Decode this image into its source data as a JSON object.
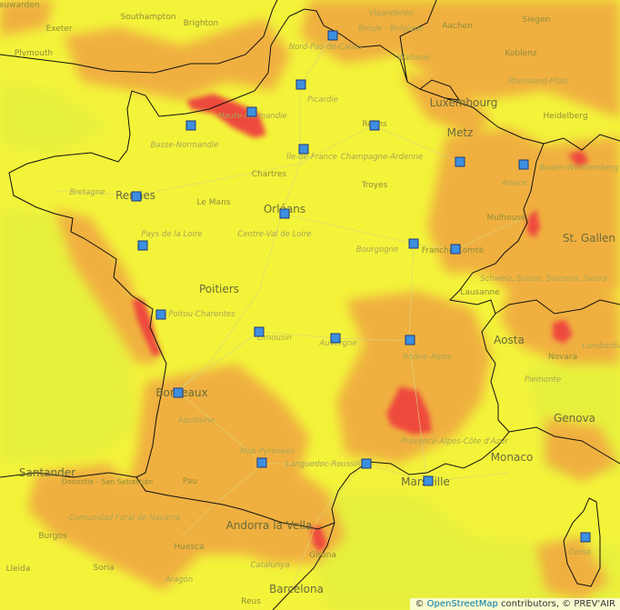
{
  "colors": {
    "low": "#ecf23a",
    "moderate": "#f3f33a",
    "high": "#f0b040",
    "very_high": "#ee4a3e",
    "station": "#3d8fe0"
  },
  "labels": {
    "cities_large": [
      {
        "text": "Metz",
        "name": "label-metz"
      },
      {
        "text": "Rennes",
        "name": "label-rennes"
      },
      {
        "text": "Orléans",
        "name": "label-orleans"
      },
      {
        "text": "Poitiers",
        "name": "label-poitiers"
      },
      {
        "text": "Bordeaux",
        "name": "label-bordeaux"
      },
      {
        "text": "Marseille",
        "name": "label-marseille"
      },
      {
        "text": "Luxembourg",
        "name": "label-luxembourg"
      },
      {
        "text": "St. Gallen",
        "name": "label-st-gallen"
      },
      {
        "text": "Aosta",
        "name": "label-aosta"
      },
      {
        "text": "Genova",
        "name": "label-genova"
      },
      {
        "text": "Monaco",
        "name": "label-monaco"
      },
      {
        "text": "Santander",
        "name": "label-santander"
      },
      {
        "text": "Andorra la Vella",
        "name": "label-andorra"
      },
      {
        "text": "Barcelona",
        "name": "label-barcelona"
      }
    ],
    "cities_small": [
      {
        "text": "Southampton",
        "name": "label-southampton"
      },
      {
        "text": "Brighton",
        "name": "label-brighton"
      },
      {
        "text": "Exeter",
        "name": "label-exeter"
      },
      {
        "text": "Plymouth",
        "name": "label-plymouth"
      },
      {
        "text": "Aachen",
        "name": "label-aachen"
      },
      {
        "text": "Siegen",
        "name": "label-siegen"
      },
      {
        "text": "Koblenz",
        "name": "label-koblenz"
      },
      {
        "text": "Heidelberg",
        "name": "label-heidelberg"
      },
      {
        "text": "Reims",
        "name": "label-reims"
      },
      {
        "text": "Chartres",
        "name": "label-chartres"
      },
      {
        "text": "Troyes",
        "name": "label-troyes"
      },
      {
        "text": "Le Mans",
        "name": "label-le-mans"
      },
      {
        "text": "Mulhouse",
        "name": "label-mulhouse"
      },
      {
        "text": "Lausanne",
        "name": "label-lausanne"
      },
      {
        "text": "Novara",
        "name": "label-novara"
      },
      {
        "text": "Pau",
        "name": "label-pau"
      },
      {
        "text": "Huesca",
        "name": "label-huesca"
      },
      {
        "text": "Burgos",
        "name": "label-burgos"
      },
      {
        "text": "Soria",
        "name": "label-soria"
      },
      {
        "text": "Girona",
        "name": "label-girona"
      },
      {
        "text": "Reus",
        "name": "label-reus"
      },
      {
        "text": "Donostia - San Sebastián",
        "name": "label-donostia"
      },
      {
        "text": "Franche-Comté",
        "name": "label-franche-comte"
      },
      {
        "text": "Leeuwarden",
        "name": "label-leeuwarden"
      },
      {
        "text": "Lleida",
        "name": "label-lleida"
      }
    ],
    "regions": [
      {
        "text": "Vlaanderen",
        "name": "label-vlaanderen"
      },
      {
        "text": "Belgie - Belgique",
        "name": "label-belgique"
      },
      {
        "text": "Wallonie",
        "name": "label-wallonie"
      },
      {
        "text": "Nord-Pas-de-Calais",
        "name": "label-nord-pas-de-calais"
      },
      {
        "text": "Picardie",
        "name": "label-picardie"
      },
      {
        "text": "Haute-Normandie",
        "name": "label-haute-normandie"
      },
      {
        "text": "Basse-Normandie",
        "name": "label-basse-normandie"
      },
      {
        "text": "Île-de-France",
        "name": "label-ile-de-france"
      },
      {
        "text": "Champagne-Ardenne",
        "name": "label-champagne-ardenne"
      },
      {
        "text": "Alsace",
        "name": "label-alsace"
      },
      {
        "text": "Bretagne",
        "name": "label-bretagne"
      },
      {
        "text": "Pays de la Loire",
        "name": "label-pays-de-la-loire"
      },
      {
        "text": "Centre-Val de Loire",
        "name": "label-centre-val-de-loire"
      },
      {
        "text": "Bourgogne",
        "name": "label-bourgogne"
      },
      {
        "text": "Poitou-Charentes",
        "name": "label-poitou-charentes"
      },
      {
        "text": "Limousin",
        "name": "label-limousin"
      },
      {
        "text": "Auvergne",
        "name": "label-auvergne"
      },
      {
        "text": "Rhône-Alpes",
        "name": "label-rhone-alpes"
      },
      {
        "text": "Aquitaine",
        "name": "label-aquitaine"
      },
      {
        "text": "Midi-Pyrénées",
        "name": "label-midi-pyrenees"
      },
      {
        "text": "Languedoc-Roussillon",
        "name": "label-languedoc-roussillon"
      },
      {
        "text": "Provence-Alpes-Côte d'Azur",
        "name": "label-paca"
      },
      {
        "text": "Rheinland-Pfalz",
        "name": "label-rheinland-pfalz"
      },
      {
        "text": "Baden-Württemberg",
        "name": "label-baden-wurttemberg"
      },
      {
        "text": "Schweiz, Suisse, Svizzera, Svizra",
        "name": "label-schweiz"
      },
      {
        "text": "Piemonte",
        "name": "label-piemonte"
      },
      {
        "text": "Lombardia",
        "name": "label-lombardia"
      },
      {
        "text": "Comunidad Foral de Navarra",
        "name": "label-navarra"
      },
      {
        "text": "Aragón",
        "name": "label-aragon"
      },
      {
        "text": "Catalunya",
        "name": "label-catalunya"
      },
      {
        "text": "Corse",
        "name": "label-corse"
      }
    ]
  },
  "attribution": {
    "prefix": "©",
    "osm_link": "OpenStreetMap",
    "suffix": "contributors, © PREV'AIR"
  }
}
